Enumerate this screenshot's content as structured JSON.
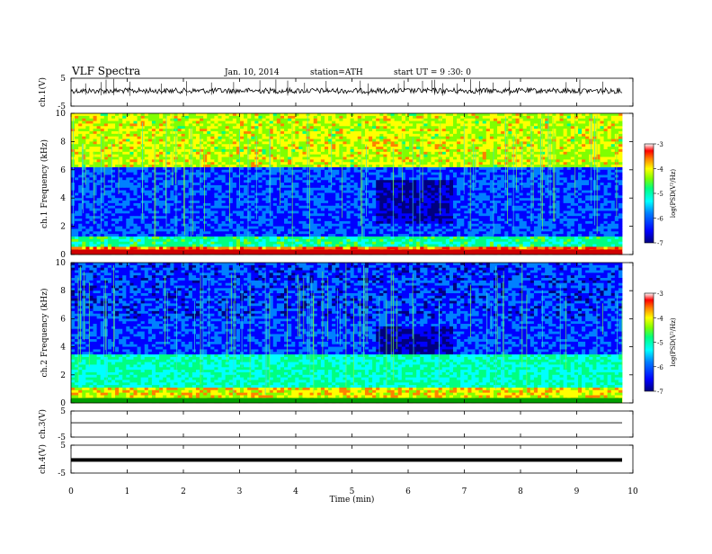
{
  "header": {
    "title": "VLF  Spectra",
    "date": "Jan. 10, 2014",
    "station": "station=ATH",
    "start": "start  UT  =   9  :30: 0"
  },
  "colors": {
    "colormap": [
      "#000080",
      "#0000ff",
      "#0080ff",
      "#00ffff",
      "#00ff80",
      "#80ff00",
      "#ffff00",
      "#ff8000",
      "#ff0000",
      "#ffffff"
    ]
  },
  "chart_data": [
    {
      "type": "line",
      "name": "ch1-waveform",
      "ylabel": "ch.1(V)",
      "ylim": [
        -5,
        5
      ],
      "yticks": [
        "5",
        "-5"
      ],
      "xlim": [
        0,
        10
      ]
    },
    {
      "type": "heatmap",
      "name": "ch1-spectrogram",
      "ylabel": "ch.1 Frequency  (kHz)",
      "ylim": [
        0,
        10
      ],
      "yticks": [
        "0",
        "2",
        "4",
        "6",
        "8",
        "10"
      ],
      "xlim": [
        0,
        10
      ],
      "colorbar": {
        "label": "log(PSD(V²/Hz)",
        "range": [
          -7,
          -3
        ],
        "ticks": [
          "-3",
          "-4",
          "-5",
          "-6",
          "-7"
        ]
      }
    },
    {
      "type": "heatmap",
      "name": "ch2-spectrogram",
      "ylabel": "ch.2 Frequency  (kHz)",
      "ylim": [
        0,
        10
      ],
      "yticks": [
        "0",
        "2",
        "4",
        "6",
        "8",
        "10"
      ],
      "xlim": [
        0,
        10
      ],
      "colorbar": {
        "label": "log(PSD(V²/Hz)",
        "range": [
          -7,
          -3
        ],
        "ticks": [
          "-3",
          "-4",
          "-5",
          "-6",
          "-7"
        ]
      }
    },
    {
      "type": "line",
      "name": "ch3-waveform",
      "ylabel": "ch.3(V)",
      "ylim": [
        -5,
        5
      ],
      "yticks": [
        "5",
        "-5"
      ],
      "xlim": [
        0,
        10
      ]
    },
    {
      "type": "line",
      "name": "ch4-waveform",
      "ylabel": "ch.4(V)",
      "ylim": [
        -5,
        5
      ],
      "yticks": [
        "5",
        "-5"
      ],
      "xlim": [
        0,
        10
      ],
      "xlabel": "Time  (min)",
      "xticks": [
        "0",
        "1",
        "2",
        "3",
        "4",
        "5",
        "6",
        "7",
        "8",
        "9",
        "10"
      ]
    }
  ]
}
